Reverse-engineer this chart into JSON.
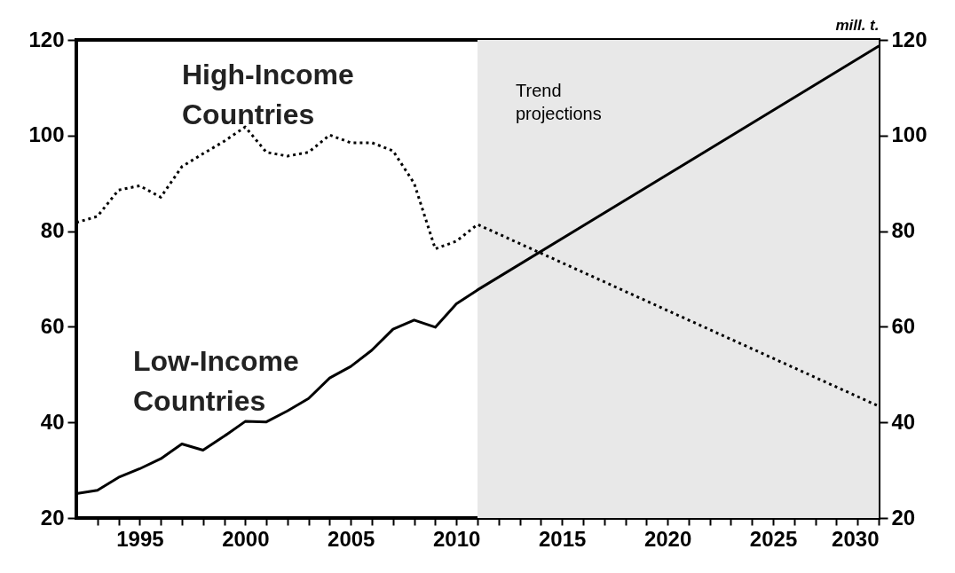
{
  "chart_data": {
    "type": "line",
    "x": [
      1992,
      1993,
      1994,
      1995,
      1996,
      1997,
      1998,
      1999,
      2000,
      2001,
      2002,
      2003,
      2004,
      2005,
      2006,
      2007,
      2008,
      2009,
      2010,
      2011,
      2030
    ],
    "series": [
      {
        "name": "High-Income Countries",
        "color": "#000000",
        "line_style": "dotted",
        "values": [
          81.8,
          83.1,
          88.6,
          89.5,
          87.1,
          93.5,
          96.2,
          98.8,
          101.8,
          96.5,
          95.7,
          96.5,
          100.1,
          98.5,
          98.5,
          96.8,
          90.0,
          76.3,
          77.9,
          81.4,
          43.4
        ]
      },
      {
        "name": "Low-Income Countries",
        "color": "#000000",
        "line_style": "solid",
        "values": [
          25.1,
          25.8,
          28.5,
          30.3,
          32.4,
          35.5,
          34.2,
          37.1,
          40.2,
          40.1,
          42.4,
          45.0,
          49.3,
          51.7,
          55.1,
          59.5,
          61.4,
          59.9,
          64.8,
          67.7,
          118.7
        ]
      }
    ],
    "xlim": [
      1992,
      2030
    ],
    "xticks": [
      {
        "value": 1993,
        "label": null
      },
      {
        "value": 1994,
        "label": null
      },
      1995,
      {
        "value": 1996,
        "label": null
      },
      {
        "value": 1997,
        "label": null
      },
      {
        "value": 1998,
        "label": null
      },
      {
        "value": 1999,
        "label": null
      },
      2000,
      {
        "value": 2001,
        "label": null
      },
      {
        "value": 2002,
        "label": null
      },
      {
        "value": 2003,
        "label": null
      },
      {
        "value": 2004,
        "label": null
      },
      2005,
      {
        "value": 2006,
        "label": null
      },
      {
        "value": 2007,
        "label": null
      },
      {
        "value": 2008,
        "label": null
      },
      {
        "value": 2009,
        "label": null
      },
      2010,
      {
        "value": 2011,
        "label": null
      },
      {
        "value": 2012,
        "label": null
      },
      {
        "value": 2013,
        "label": null
      },
      {
        "value": 2014,
        "label": null
      },
      2015,
      {
        "value": 2016,
        "label": null
      },
      {
        "value": 2017,
        "label": null
      },
      {
        "value": 2018,
        "label": null
      },
      {
        "value": 2019,
        "label": null
      },
      2020,
      {
        "value": 2021,
        "label": null
      },
      {
        "value": 2022,
        "label": null
      },
      {
        "value": 2023,
        "label": null
      },
      {
        "value": 2024,
        "label": null
      },
      2025,
      {
        "value": 2026,
        "label": null
      },
      {
        "value": 2027,
        "label": null
      },
      {
        "value": 2028,
        "label": null
      },
      {
        "value": 2029,
        "label": null
      },
      2030
    ],
    "ylim": [
      20,
      120
    ],
    "yticks": [
      20,
      40,
      60,
      80,
      100,
      120
    ],
    "y2lim": [
      20,
      120
    ],
    "y2ticks": [
      20,
      40,
      60,
      80,
      100,
      120
    ],
    "y2label": "mill. t.",
    "bands": [
      {
        "axis": "x",
        "from": 2011,
        "to": 2030,
        "label": "Trend projections",
        "color": "#e8e8e8"
      }
    ],
    "grid": false,
    "legend": false,
    "marker": "none"
  }
}
